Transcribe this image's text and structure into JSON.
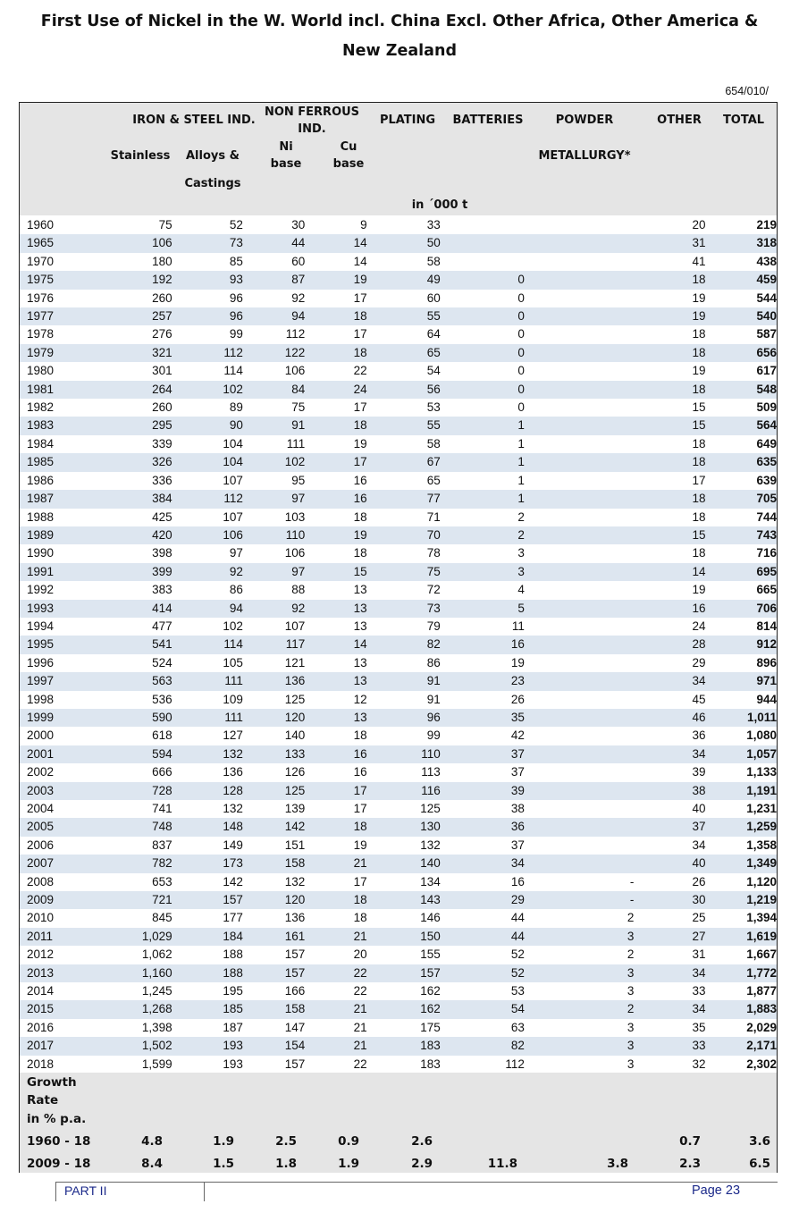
{
  "title_line1": "First Use of Nickel in the W. World incl. China Excl. Other Africa, Other America &",
  "title_line2": "New Zealand",
  "doc_code": "654/010/",
  "headers": {
    "iron_steel": "IRON & STEEL IND.",
    "stainless": "Stainless",
    "alloys": "Alloys &",
    "castings": "Castings",
    "non_ferrous_1": "NON FERROUS",
    "non_ferrous_2": "IND.",
    "ni_1": "Ni",
    "ni_2": "base",
    "cu_1": "Cu",
    "cu_2": "base",
    "plating": "PLATING",
    "batteries": "BATTERIES",
    "powder": "POWDER",
    "metallurgy": "METALLURGY*",
    "other": "OTHER",
    "total": "TOTAL",
    "unit": "in ´000 t"
  },
  "rows": [
    [
      "1960",
      "75",
      "52",
      "30",
      "9",
      "33",
      "",
      "",
      "20",
      "219"
    ],
    [
      "1965",
      "106",
      "73",
      "44",
      "14",
      "50",
      "",
      "",
      "31",
      "318"
    ],
    [
      "1970",
      "180",
      "85",
      "60",
      "14",
      "58",
      "",
      "",
      "41",
      "438"
    ],
    [
      "1975",
      "192",
      "93",
      "87",
      "19",
      "49",
      "0",
      "",
      "18",
      "459"
    ],
    [
      "1976",
      "260",
      "96",
      "92",
      "17",
      "60",
      "0",
      "",
      "19",
      "544"
    ],
    [
      "1977",
      "257",
      "96",
      "94",
      "18",
      "55",
      "0",
      "",
      "19",
      "540"
    ],
    [
      "1978",
      "276",
      "99",
      "112",
      "17",
      "64",
      "0",
      "",
      "18",
      "587"
    ],
    [
      "1979",
      "321",
      "112",
      "122",
      "18",
      "65",
      "0",
      "",
      "18",
      "656"
    ],
    [
      "1980",
      "301",
      "114",
      "106",
      "22",
      "54",
      "0",
      "",
      "19",
      "617"
    ],
    [
      "1981",
      "264",
      "102",
      "84",
      "24",
      "56",
      "0",
      "",
      "18",
      "548"
    ],
    [
      "1982",
      "260",
      "89",
      "75",
      "17",
      "53",
      "0",
      "",
      "15",
      "509"
    ],
    [
      "1983",
      "295",
      "90",
      "91",
      "18",
      "55",
      "1",
      "",
      "15",
      "564"
    ],
    [
      "1984",
      "339",
      "104",
      "111",
      "19",
      "58",
      "1",
      "",
      "18",
      "649"
    ],
    [
      "1985",
      "326",
      "104",
      "102",
      "17",
      "67",
      "1",
      "",
      "18",
      "635"
    ],
    [
      "1986",
      "336",
      "107",
      "95",
      "16",
      "65",
      "1",
      "",
      "17",
      "639"
    ],
    [
      "1987",
      "384",
      "112",
      "97",
      "16",
      "77",
      "1",
      "",
      "18",
      "705"
    ],
    [
      "1988",
      "425",
      "107",
      "103",
      "18",
      "71",
      "2",
      "",
      "18",
      "744"
    ],
    [
      "1989",
      "420",
      "106",
      "110",
      "19",
      "70",
      "2",
      "",
      "15",
      "743"
    ],
    [
      "1990",
      "398",
      "97",
      "106",
      "18",
      "78",
      "3",
      "",
      "18",
      "716"
    ],
    [
      "1991",
      "399",
      "92",
      "97",
      "15",
      "75",
      "3",
      "",
      "14",
      "695"
    ],
    [
      "1992",
      "383",
      "86",
      "88",
      "13",
      "72",
      "4",
      "",
      "19",
      "665"
    ],
    [
      "1993",
      "414",
      "94",
      "92",
      "13",
      "73",
      "5",
      "",
      "16",
      "706"
    ],
    [
      "1994",
      "477",
      "102",
      "107",
      "13",
      "79",
      "11",
      "",
      "24",
      "814"
    ],
    [
      "1995",
      "541",
      "114",
      "117",
      "14",
      "82",
      "16",
      "",
      "28",
      "912"
    ],
    [
      "1996",
      "524",
      "105",
      "121",
      "13",
      "86",
      "19",
      "",
      "29",
      "896"
    ],
    [
      "1997",
      "563",
      "111",
      "136",
      "13",
      "91",
      "23",
      "",
      "34",
      "971"
    ],
    [
      "1998",
      "536",
      "109",
      "125",
      "12",
      "91",
      "26",
      "",
      "45",
      "944"
    ],
    [
      "1999",
      "590",
      "111",
      "120",
      "13",
      "96",
      "35",
      "",
      "46",
      "1,011"
    ],
    [
      "2000",
      "618",
      "127",
      "140",
      "18",
      "99",
      "42",
      "",
      "36",
      "1,080"
    ],
    [
      "2001",
      "594",
      "132",
      "133",
      "16",
      "110",
      "37",
      "",
      "34",
      "1,057"
    ],
    [
      "2002",
      "666",
      "136",
      "126",
      "16",
      "113",
      "37",
      "",
      "39",
      "1,133"
    ],
    [
      "2003",
      "728",
      "128",
      "125",
      "17",
      "116",
      "39",
      "",
      "38",
      "1,191"
    ],
    [
      "2004",
      "741",
      "132",
      "139",
      "17",
      "125",
      "38",
      "",
      "40",
      "1,231"
    ],
    [
      "2005",
      "748",
      "148",
      "142",
      "18",
      "130",
      "36",
      "",
      "37",
      "1,259"
    ],
    [
      "2006",
      "837",
      "149",
      "151",
      "19",
      "132",
      "37",
      "",
      "34",
      "1,358"
    ],
    [
      "2007",
      "782",
      "173",
      "158",
      "21",
      "140",
      "34",
      "",
      "40",
      "1,349"
    ],
    [
      "2008",
      "653",
      "142",
      "132",
      "17",
      "134",
      "16",
      "-",
      "26",
      "1,120"
    ],
    [
      "2009",
      "721",
      "157",
      "120",
      "18",
      "143",
      "29",
      "-",
      "30",
      "1,219"
    ],
    [
      "2010",
      "845",
      "177",
      "136",
      "18",
      "146",
      "44",
      "2",
      "25",
      "1,394"
    ],
    [
      "2011",
      "1,029",
      "184",
      "161",
      "21",
      "150",
      "44",
      "3",
      "27",
      "1,619"
    ],
    [
      "2012",
      "1,062",
      "188",
      "157",
      "20",
      "155",
      "52",
      "2",
      "31",
      "1,667"
    ],
    [
      "2013",
      "1,160",
      "188",
      "157",
      "22",
      "157",
      "52",
      "3",
      "34",
      "1,772"
    ],
    [
      "2014",
      "1,245",
      "195",
      "166",
      "22",
      "162",
      "53",
      "3",
      "33",
      "1,877"
    ],
    [
      "2015",
      "1,268",
      "185",
      "158",
      "21",
      "162",
      "54",
      "2",
      "34",
      "1,883"
    ],
    [
      "2016",
      "1,398",
      "187",
      "147",
      "21",
      "175",
      "63",
      "3",
      "35",
      "2,029"
    ],
    [
      "2017",
      "1,502",
      "193",
      "154",
      "21",
      "183",
      "82",
      "3",
      "33",
      "2,171"
    ],
    [
      "2018",
      "1,599",
      "193",
      "157",
      "22",
      "183",
      "112",
      "3",
      "32",
      "2,302"
    ]
  ],
  "growth_label": [
    "Growth",
    "Rate",
    "in % p.a."
  ],
  "growth_rows": [
    [
      "1960 - 18",
      "4.8",
      "1.9",
      "2.5",
      "0.9",
      "2.6",
      "",
      "",
      "0.7",
      "3.6"
    ],
    [
      "2009 - 18",
      "8.4",
      "1.5",
      "1.8",
      "1.9",
      "2.9",
      "11.8",
      "3.8",
      "2.3",
      "6.5"
    ]
  ],
  "footer_left": "PART II",
  "footer_right": "Page 23"
}
